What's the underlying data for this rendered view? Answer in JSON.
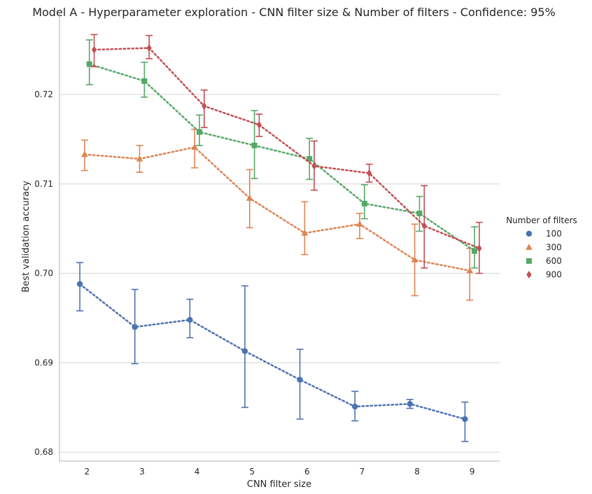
{
  "chart_data": {
    "type": "line",
    "title": "Model A - Hyperparameter exploration - CNN filter size & Number of filters - Confidence: 95%",
    "xlabel": "CNN filter size",
    "ylabel": "Best validation accuracy",
    "x": [
      2,
      3,
      4,
      5,
      6,
      7,
      8,
      9
    ],
    "x_ticks": [
      "2",
      "3",
      "4",
      "5",
      "6",
      "7",
      "8",
      "9"
    ],
    "ylim": [
      0.679,
      0.729
    ],
    "y_ticks": [
      0.68,
      0.69,
      0.7,
      0.71,
      0.72
    ],
    "y_tick_labels": [
      "0.68",
      "0.69",
      "0.70",
      "0.71",
      "0.72"
    ],
    "grid": "horizontal",
    "legend": {
      "title": "Number of filters",
      "placement": "right"
    },
    "series": [
      {
        "name": "100",
        "color": "#4c72b0",
        "marker": "circle",
        "values": [
          0.6988,
          0.694,
          0.6948,
          0.6913,
          0.6881,
          0.6851,
          0.6854,
          0.6837
        ],
        "ci_low": [
          0.6958,
          0.6899,
          0.6928,
          0.685,
          0.6837,
          0.6835,
          0.6849,
          0.6812
        ],
        "ci_high": [
          0.7012,
          0.6982,
          0.6971,
          0.6986,
          0.6915,
          0.6868,
          0.6859,
          0.6856
        ]
      },
      {
        "name": "300",
        "color": "#dd8452",
        "marker": "triangle",
        "values": [
          0.7133,
          0.7128,
          0.7141,
          0.7084,
          0.7045,
          0.7055,
          0.7015,
          0.7003
        ],
        "ci_low": [
          0.7115,
          0.7113,
          0.7118,
          0.7051,
          0.7021,
          0.7039,
          0.6975,
          0.697
        ],
        "ci_high": [
          0.7149,
          0.7143,
          0.7161,
          0.7116,
          0.708,
          0.7067,
          0.7055,
          0.7028
        ]
      },
      {
        "name": "600",
        "color": "#55a868",
        "marker": "square",
        "values": [
          0.7234,
          0.7215,
          0.7158,
          0.7143,
          0.7128,
          0.7078,
          0.7067,
          0.7025
        ],
        "ci_low": [
          0.7211,
          0.7197,
          0.7143,
          0.7106,
          0.7105,
          0.7061,
          0.7047,
          0.7006
        ],
        "ci_high": [
          0.7261,
          0.7236,
          0.7177,
          0.7182,
          0.7151,
          0.7099,
          0.7086,
          0.7052
        ]
      },
      {
        "name": "900",
        "color": "#c44e52",
        "marker": "diamond",
        "values": [
          0.725,
          0.7252,
          0.7187,
          0.7166,
          0.712,
          0.7112,
          0.7053,
          0.7028
        ],
        "ci_low": [
          0.7231,
          0.724,
          0.7163,
          0.7153,
          0.7093,
          0.7102,
          0.7006,
          0.7
        ],
        "ci_high": [
          0.7267,
          0.7266,
          0.7205,
          0.7178,
          0.7148,
          0.7122,
          0.7098,
          0.7057
        ]
      }
    ]
  }
}
